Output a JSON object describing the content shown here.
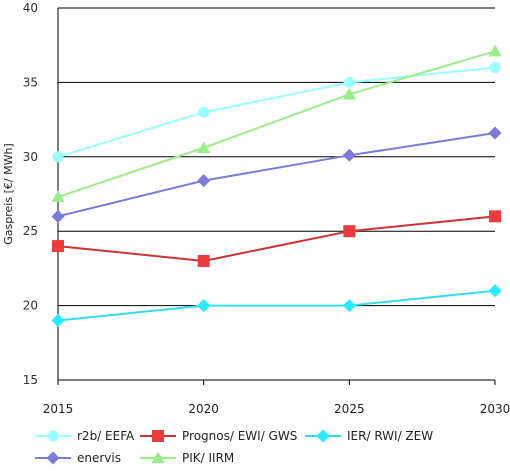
{
  "chart_data": {
    "type": "line",
    "title": "",
    "xlabel": "",
    "ylabel": "Gaspreis [€/ MWh]",
    "x": [
      2015,
      2020,
      2025,
      2030
    ],
    "xticks": [
      "2015",
      "2020",
      "2025",
      "2030"
    ],
    "ylim": [
      15,
      40
    ],
    "yticks": [
      "15",
      "20",
      "25",
      "30",
      "35",
      "40"
    ],
    "ytick_values": [
      15,
      20,
      25,
      30,
      35,
      40
    ],
    "grid": "horizontal",
    "legend_position": "bottom",
    "series": [
      {
        "name": "r2b/ EEFA",
        "values": [
          30,
          33,
          35,
          36
        ],
        "color": "#99ffff",
        "marker": "circle"
      },
      {
        "name": "enervis",
        "values": [
          26,
          28.4,
          30.1,
          31.6
        ],
        "color": "#7b7bdb",
        "marker": "diamond"
      },
      {
        "name": "Prognos/ EWI/ GWS",
        "values": [
          24,
          23,
          25,
          26
        ],
        "color": "#cc3333",
        "marker_color": "#ee3b3b",
        "marker": "square"
      },
      {
        "name": "PIK/ IIRM",
        "values": [
          27.3,
          30.6,
          34.2,
          37.1
        ],
        "color": "#99ee88",
        "marker": "triangle"
      },
      {
        "name": "IER/ RWI/ ZEW",
        "values": [
          19,
          20,
          20,
          21
        ],
        "color": "#33ddee",
        "marker_color": "#22eeff",
        "marker": "diamond"
      }
    ]
  }
}
